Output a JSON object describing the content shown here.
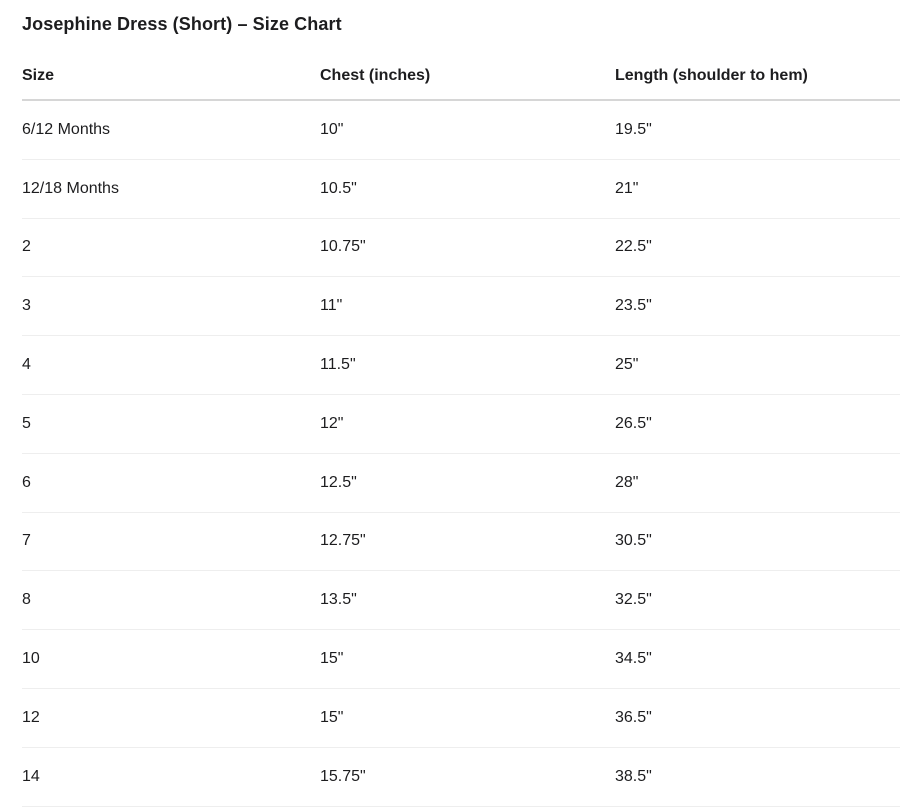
{
  "page": {
    "title": "Josephine Dress (Short) – Size Chart"
  },
  "table": {
    "columns": [
      "Size",
      "Chest (inches)",
      "Length (shoulder to hem)"
    ],
    "rows": [
      [
        "6/12 Months",
        "10\"",
        "19.5\""
      ],
      [
        "12/18 Months",
        "10.5\"",
        "21\""
      ],
      [
        "2",
        "10.75\"",
        "22.5\""
      ],
      [
        "3",
        "11\"",
        "23.5\""
      ],
      [
        "4",
        "11.5\"",
        "25\""
      ],
      [
        "5",
        "12\"",
        "26.5\""
      ],
      [
        "6",
        "12.5\"",
        "28\""
      ],
      [
        "7",
        "12.75\"",
        "30.5\""
      ],
      [
        "8",
        "13.5\"",
        "32.5\""
      ],
      [
        "10",
        "15\"",
        "34.5\""
      ],
      [
        "12",
        "15\"",
        "36.5\""
      ],
      [
        "14",
        "15.75\"",
        "38.5\""
      ]
    ]
  },
  "colors": {
    "background": "#ffffff",
    "text": "#1d1d1f",
    "header_border": "#d6d6d6",
    "row_border": "#eeeeee"
  }
}
